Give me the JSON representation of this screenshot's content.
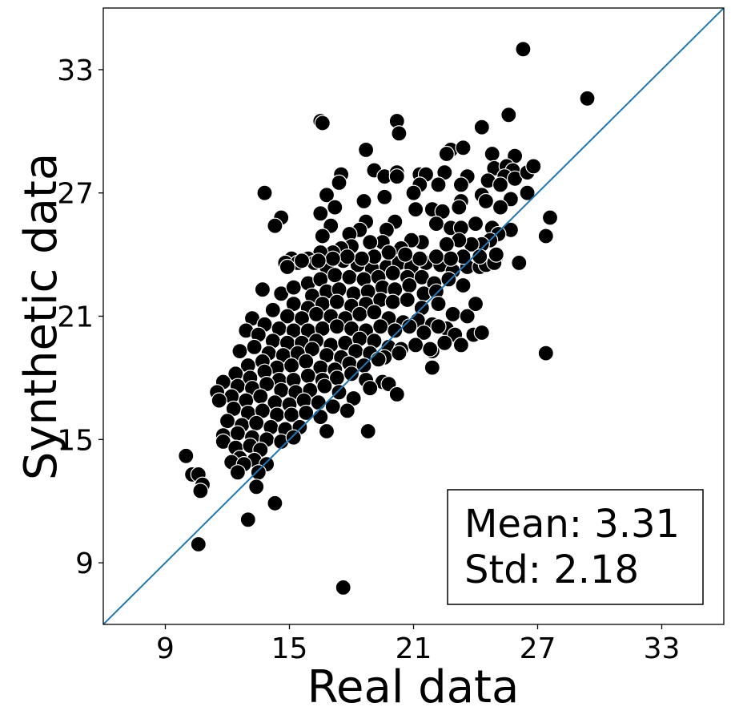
{
  "chart_data": {
    "type": "scatter",
    "xlabel": "Real data",
    "ylabel": "Synthetic data",
    "xlim": [
      6,
      36
    ],
    "ylim": [
      6,
      36
    ],
    "xticks": [
      9,
      15,
      21,
      27,
      33
    ],
    "yticks": [
      9,
      15,
      21,
      27,
      33
    ],
    "grid": false,
    "reference_line": {
      "type": "identity",
      "color": "#1f77b4"
    },
    "marker_color": "#000000",
    "marker_edge_color": "#ffffff",
    "annotation": {
      "mean_line": "Mean: 3.31",
      "std_line": "Std: 2.18",
      "placement": "bottom-right"
    },
    "points": [
      [
        26.3,
        34.0
      ],
      [
        29.4,
        31.6
      ],
      [
        25.6,
        30.8
      ],
      [
        24.3,
        30.2
      ],
      [
        16.5,
        30.5
      ],
      [
        16.6,
        30.4
      ],
      [
        20.2,
        30.5
      ],
      [
        20.3,
        29.9
      ],
      [
        22.8,
        29.1
      ],
      [
        23.4,
        29.2
      ],
      [
        22.6,
        28.9
      ],
      [
        24.8,
        28.9
      ],
      [
        25.9,
        28.8
      ],
      [
        18.7,
        29.1
      ],
      [
        19.1,
        28.1
      ],
      [
        19.6,
        27.8
      ],
      [
        20.2,
        28.0
      ],
      [
        20.2,
        27.8
      ],
      [
        21.3,
        27.9
      ],
      [
        21.6,
        27.9
      ],
      [
        22.5,
        28.0
      ],
      [
        23.6,
        27.8
      ],
      [
        24.9,
        28.2
      ],
      [
        25.5,
        28.3
      ],
      [
        25.8,
        28.1
      ],
      [
        25.4,
        27.8
      ],
      [
        25.9,
        27.7
      ],
      [
        26.5,
        28.0
      ],
      [
        26.8,
        28.3
      ],
      [
        17.5,
        27.9
      ],
      [
        21.3,
        27.4
      ],
      [
        22.2,
        27.4
      ],
      [
        23.3,
        27.4
      ],
      [
        24.6,
        27.6
      ],
      [
        25.2,
        27.4
      ],
      [
        21.0,
        27.0
      ],
      [
        13.8,
        27.0
      ],
      [
        16.8,
        26.9
      ],
      [
        24.3,
        26.9
      ],
      [
        26.5,
        27.0
      ],
      [
        17.4,
        27.5
      ],
      [
        18.6,
        26.6
      ],
      [
        19.6,
        26.8
      ],
      [
        21.1,
        26.2
      ],
      [
        21.9,
        26.2
      ],
      [
        23.3,
        26.6
      ],
      [
        24.5,
        26.6
      ],
      [
        25.7,
        26.7
      ],
      [
        22.4,
        26.1
      ],
      [
        23.2,
        26.3
      ],
      [
        25.2,
        26.3
      ],
      [
        17.2,
        26.3
      ],
      [
        16.5,
        26.0
      ],
      [
        14.6,
        25.8
      ],
      [
        20.1,
        25.6
      ],
      [
        19.7,
        25.2
      ],
      [
        18.7,
        25.6
      ],
      [
        18.4,
        25.2
      ],
      [
        17.9,
        25.0
      ],
      [
        17.0,
        25.4
      ],
      [
        16.6,
        24.9
      ],
      [
        14.3,
        25.4
      ],
      [
        22.1,
        25.5
      ],
      [
        22.8,
        25.3
      ],
      [
        23.3,
        25.3
      ],
      [
        24.0,
        25.5
      ],
      [
        24.8,
        25.3
      ],
      [
        25.7,
        25.2
      ],
      [
        27.6,
        25.8
      ],
      [
        27.4,
        24.9
      ],
      [
        25.1,
        25.0
      ],
      [
        24.7,
        24.7
      ],
      [
        24.3,
        24.5
      ],
      [
        23.8,
        24.5
      ],
      [
        23.2,
        24.7
      ],
      [
        22.6,
        24.5
      ],
      [
        21.4,
        24.6
      ],
      [
        20.9,
        24.7
      ],
      [
        20.4,
        24.3
      ],
      [
        19.5,
        24.6
      ],
      [
        18.9,
        24.6
      ],
      [
        18.0,
        24.4
      ],
      [
        17.5,
        24.3
      ],
      [
        17.1,
        24.1
      ],
      [
        16.5,
        24.1
      ],
      [
        15.9,
        23.8
      ],
      [
        15.1,
        23.8
      ],
      [
        14.8,
        23.6
      ],
      [
        15.4,
        23.6
      ],
      [
        16.2,
        23.6
      ],
      [
        16.8,
        23.4
      ],
      [
        17.6,
        23.7
      ],
      [
        18.3,
        23.5
      ],
      [
        19.0,
        23.3
      ],
      [
        19.7,
        23.4
      ],
      [
        20.3,
        23.6
      ],
      [
        20.9,
        23.4
      ],
      [
        21.6,
        23.6
      ],
      [
        22.3,
        23.5
      ],
      [
        22.9,
        23.2
      ],
      [
        23.6,
        23.4
      ],
      [
        24.2,
        23.4
      ],
      [
        25.0,
        23.9
      ],
      [
        26.1,
        23.6
      ],
      [
        24.5,
        23.5
      ],
      [
        24.9,
        23.6
      ],
      [
        25.0,
        24.0
      ],
      [
        24.2,
        23.9
      ],
      [
        23.4,
        23.9
      ],
      [
        22.8,
        23.8
      ],
      [
        22.1,
        23.9
      ],
      [
        21.3,
        23.8
      ],
      [
        20.6,
        24.0
      ],
      [
        19.8,
        24.1
      ],
      [
        19.1,
        23.9
      ],
      [
        18.5,
        23.8
      ],
      [
        17.8,
        23.9
      ],
      [
        17.1,
        23.8
      ],
      [
        16.4,
        23.7
      ],
      [
        15.6,
        23.7
      ],
      [
        14.9,
        23.4
      ],
      [
        13.7,
        22.3
      ],
      [
        14.6,
        22.1
      ],
      [
        15.2,
        22.4
      ],
      [
        15.9,
        22.6
      ],
      [
        16.5,
        22.8
      ],
      [
        17.2,
        23.0
      ],
      [
        17.9,
        22.9
      ],
      [
        18.6,
        22.8
      ],
      [
        19.3,
        22.9
      ],
      [
        20.0,
        23.1
      ],
      [
        20.7,
        22.9
      ],
      [
        21.4,
        22.9
      ],
      [
        22.0,
        22.6
      ],
      [
        22.7,
        22.8
      ],
      [
        23.4,
        22.5
      ],
      [
        16.1,
        22.0
      ],
      [
        16.8,
        22.2
      ],
      [
        17.4,
        22.3
      ],
      [
        18.1,
        22.1
      ],
      [
        18.8,
        22.2
      ],
      [
        19.5,
        22.4
      ],
      [
        20.1,
        22.3
      ],
      [
        20.8,
        22.5
      ],
      [
        21.5,
        22.1
      ],
      [
        22.1,
        22.2
      ],
      [
        15.2,
        21.6
      ],
      [
        15.9,
        21.4
      ],
      [
        16.6,
        21.6
      ],
      [
        17.3,
        21.7
      ],
      [
        18.0,
        21.5
      ],
      [
        18.7,
        21.6
      ],
      [
        19.4,
        21.8
      ],
      [
        20.0,
        21.7
      ],
      [
        20.7,
        21.8
      ],
      [
        21.4,
        21.4
      ],
      [
        22.2,
        21.6
      ],
      [
        22.9,
        21.1
      ],
      [
        23.6,
        21.0
      ],
      [
        24.0,
        21.6
      ],
      [
        14.2,
        21.3
      ],
      [
        14.9,
        21.0
      ],
      [
        15.6,
        20.9
      ],
      [
        16.3,
        21.1
      ],
      [
        17.0,
        21.0
      ],
      [
        17.7,
        20.9
      ],
      [
        18.4,
        21.1
      ],
      [
        19.1,
        21.2
      ],
      [
        19.8,
        20.9
      ],
      [
        20.5,
        20.7
      ],
      [
        21.2,
        20.8
      ],
      [
        21.9,
        20.6
      ],
      [
        22.6,
        20.4
      ],
      [
        13.2,
        20.9
      ],
      [
        13.8,
        20.6
      ],
      [
        14.5,
        20.4
      ],
      [
        15.2,
        20.3
      ],
      [
        15.9,
        20.3
      ],
      [
        16.6,
        20.4
      ],
      [
        17.3,
        20.5
      ],
      [
        18.0,
        20.4
      ],
      [
        18.7,
        20.3
      ],
      [
        19.4,
        20.5
      ],
      [
        20.1,
        20.3
      ],
      [
        20.8,
        20.5
      ],
      [
        21.5,
        20.2
      ],
      [
        22.2,
        20.5
      ],
      [
        23.0,
        20.1
      ],
      [
        23.9,
        20.1
      ],
      [
        24.3,
        20.2
      ],
      [
        12.9,
        20.3
      ],
      [
        13.5,
        20.1
      ],
      [
        14.2,
        19.8
      ],
      [
        14.9,
        19.7
      ],
      [
        15.6,
        19.7
      ],
      [
        16.3,
        19.8
      ],
      [
        17.0,
        19.6
      ],
      [
        17.7,
        19.7
      ],
      [
        18.4,
        19.9
      ],
      [
        19.1,
        19.8
      ],
      [
        19.8,
        19.5
      ],
      [
        20.4,
        19.4
      ],
      [
        21.1,
        19.6
      ],
      [
        21.9,
        19.3
      ],
      [
        22.5,
        19.7
      ],
      [
        23.3,
        19.6
      ],
      [
        12.6,
        19.3
      ],
      [
        13.3,
        19.5
      ],
      [
        14.0,
        19.2
      ],
      [
        14.7,
        19.1
      ],
      [
        15.4,
        19.2
      ],
      [
        16.1,
        19.4
      ],
      [
        16.8,
        19.1
      ],
      [
        17.5,
        19.0
      ],
      [
        18.2,
        19.3
      ],
      [
        18.9,
        19.2
      ],
      [
        19.6,
        19.0
      ],
      [
        20.3,
        19.2
      ],
      [
        21.8,
        19.4
      ],
      [
        13.0,
        18.6
      ],
      [
        13.7,
        18.8
      ],
      [
        14.4,
        18.5
      ],
      [
        15.1,
        18.6
      ],
      [
        15.8,
        18.8
      ],
      [
        16.5,
        18.5
      ],
      [
        17.2,
        18.4
      ],
      [
        17.9,
        18.7
      ],
      [
        18.6,
        18.6
      ],
      [
        19.3,
        18.9
      ],
      [
        21.9,
        18.5
      ],
      [
        27.4,
        19.2
      ],
      [
        12.4,
        18.2
      ],
      [
        13.1,
        18.0
      ],
      [
        13.8,
        18.3
      ],
      [
        14.5,
        17.9
      ],
      [
        15.2,
        17.9
      ],
      [
        15.9,
        18.1
      ],
      [
        16.6,
        17.9
      ],
      [
        17.3,
        18.0
      ],
      [
        18.0,
        18.2
      ],
      [
        18.7,
        17.9
      ],
      [
        19.5,
        17.8
      ],
      [
        19.8,
        17.7
      ],
      [
        11.8,
        17.8
      ],
      [
        12.5,
        17.6
      ],
      [
        13.2,
        17.5
      ],
      [
        13.9,
        17.7
      ],
      [
        14.6,
        17.4
      ],
      [
        15.3,
        17.3
      ],
      [
        16.0,
        17.4
      ],
      [
        16.7,
        17.6
      ],
      [
        17.4,
        17.3
      ],
      [
        18.1,
        17.0
      ],
      [
        18.9,
        17.5
      ],
      [
        20.2,
        17.2
      ],
      [
        11.5,
        17.3
      ],
      [
        12.2,
        17.1
      ],
      [
        12.9,
        16.9
      ],
      [
        13.6,
        17.1
      ],
      [
        14.3,
        16.8
      ],
      [
        15.0,
        16.7
      ],
      [
        15.7,
        16.9
      ],
      [
        16.4,
        16.8
      ],
      [
        17.1,
        16.6
      ],
      [
        17.8,
        16.4
      ],
      [
        11.6,
        16.9
      ],
      [
        12.3,
        16.5
      ],
      [
        13.0,
        16.3
      ],
      [
        13.7,
        16.4
      ],
      [
        14.4,
        16.2
      ],
      [
        15.1,
        16.2
      ],
      [
        15.8,
        16.3
      ],
      [
        16.5,
        16.1
      ],
      [
        12.0,
        15.9
      ],
      [
        12.7,
        15.7
      ],
      [
        13.4,
        15.8
      ],
      [
        14.1,
        15.6
      ],
      [
        14.8,
        15.5
      ],
      [
        15.5,
        15.6
      ],
      [
        16.8,
        15.4
      ],
      [
        18.8,
        15.4
      ],
      [
        11.8,
        15.2
      ],
      [
        12.5,
        15.3
      ],
      [
        13.2,
        15.1
      ],
      [
        13.9,
        15.0
      ],
      [
        14.6,
        14.9
      ],
      [
        15.2,
        15.1
      ],
      [
        11.8,
        14.9
      ],
      [
        12.4,
        14.6
      ],
      [
        13.1,
        14.7
      ],
      [
        13.6,
        14.5
      ],
      [
        12.6,
        14.1
      ],
      [
        13.3,
        14.0
      ],
      [
        13.9,
        13.8
      ],
      [
        12.2,
        13.9
      ],
      [
        12.8,
        13.8
      ],
      [
        13.5,
        13.4
      ],
      [
        10.0,
        14.2
      ],
      [
        10.3,
        13.3
      ],
      [
        10.6,
        13.3
      ],
      [
        10.8,
        12.8
      ],
      [
        12.5,
        13.4
      ],
      [
        13.4,
        12.7
      ],
      [
        10.7,
        12.5
      ],
      [
        14.3,
        11.9
      ],
      [
        13.0,
        11.1
      ],
      [
        10.6,
        9.9
      ],
      [
        17.6,
        7.8
      ]
    ]
  }
}
